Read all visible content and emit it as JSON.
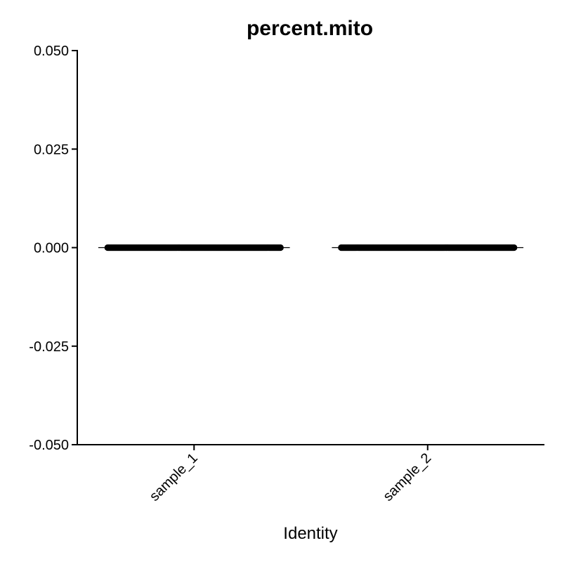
{
  "chart_data": {
    "type": "violin",
    "title": "percent.mito",
    "xlabel": "Identity",
    "ylabel": "",
    "categories": [
      "sample_1",
      "sample_2"
    ],
    "y_ticks": [
      -0.05,
      -0.025,
      0,
      0.025,
      0.05
    ],
    "y_tick_labels": [
      "-0.050",
      "-0.025",
      "0.000",
      "0.025",
      "0.050"
    ],
    "ylim": [
      -0.05,
      0.05
    ],
    "series": [
      {
        "category": "sample_1",
        "values": [
          0,
          0,
          0,
          0,
          0
        ]
      },
      {
        "category": "sample_2",
        "values": [
          0,
          0,
          0,
          0,
          0
        ]
      }
    ],
    "grid": false,
    "legend": "none",
    "point_color": "#000000",
    "line_color": "#000000"
  }
}
